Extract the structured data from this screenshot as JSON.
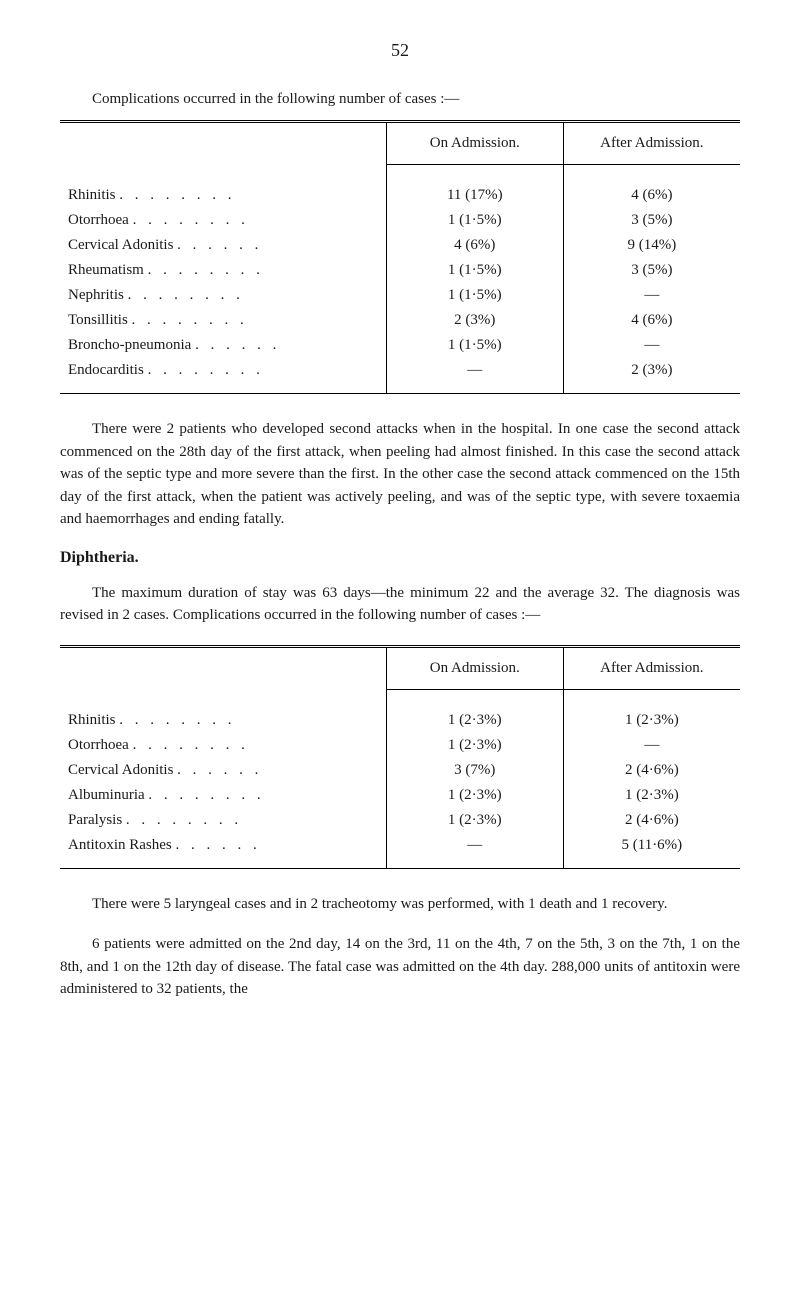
{
  "page_number": "52",
  "intro1": "Complications occurred in the following number of cases :—",
  "table1": {
    "header_col2": "On Admission.",
    "header_col3": "After Admission.",
    "rows": [
      {
        "condition": "Rhinitis",
        "dots": ". .   . .   . .   . .",
        "admission": "11 (17%)",
        "after": "4 (6%)"
      },
      {
        "condition": "Otorrhoea",
        "dots": ". .   . .   . .   . .",
        "admission": "1 (1·5%)",
        "after": "3 (5%)"
      },
      {
        "condition": "Cervical Adonitis",
        "dots": ". .   . .   . .",
        "admission": "4 (6%)",
        "after": "9 (14%)"
      },
      {
        "condition": "Rheumatism",
        "dots": ". .   . .   . .   . .",
        "admission": "1 (1·5%)",
        "after": "3 (5%)"
      },
      {
        "condition": "Nephritis",
        "dots": ". .   . .   . .   . .",
        "admission": "1 (1·5%)",
        "after": "—"
      },
      {
        "condition": "Tonsillitis",
        "dots": ". .   . .   . .   . .",
        "admission": "2 (3%)",
        "after": "4 (6%)"
      },
      {
        "condition": "Broncho-pneumonia",
        "dots": ". .   . .   . .",
        "admission": "1 (1·5%)",
        "after": "—"
      },
      {
        "condition": "Endocarditis",
        "dots": ". .   . .   . .   . .",
        "admission": "—",
        "after": "2 (3%)"
      }
    ]
  },
  "para1": "There were 2 patients who developed second attacks when in the hospital. In one case the second attack commenced on the 28th day of the first attack, when peeling had almost finished. In this case the second attack was of the septic type and more severe than the first. In the other case the second attack commenced on the 15th day of the first attack, when the patient was actively peeling, and was of the septic type, with severe toxaemia and haemorrhages and ending fatally.",
  "heading2": "Diphtheria.",
  "para2": "The maximum duration of stay was 63 days—the minimum 22 and the average 32. The diagnosis was revised in 2 cases. Com­plications occurred in the following number of cases :—",
  "table2": {
    "header_col2": "On Admission.",
    "header_col3": "After Admission.",
    "rows": [
      {
        "condition": "Rhinitis",
        "dots": ". .   . .   . .   . .",
        "admission": "1 (2·3%)",
        "after": "1 (2·3%)"
      },
      {
        "condition": "Otorrhoea",
        "dots": ". .   . .   . .   . .",
        "admission": "1 (2·3%)",
        "after": "—"
      },
      {
        "condition": "Cervical Adonitis",
        "dots": ". .   . .   . .",
        "admission": "3 (7%)",
        "after": "2 (4·6%)"
      },
      {
        "condition": "Albuminuria",
        "dots": ". .   . .   . .   . .",
        "admission": "1 (2·3%)",
        "after": "1 (2·3%)"
      },
      {
        "condition": "Paralysis",
        "dots": ". .   . .   . .   . .",
        "admission": "1 (2·3%)",
        "after": "2 (4·6%)"
      },
      {
        "condition": "Antitoxin Rashes",
        "dots": ". .   . .   . .",
        "admission": "—",
        "after": "5 (11·6%)"
      }
    ]
  },
  "para3": "There were 5 laryngeal cases and in 2 tracheotomy was performed, with 1 death and 1 recovery.",
  "para4": "6 patients were admitted on the 2nd day, 14 on the 3rd, 11 on the 4th, 7 on the 5th, 3 on the 7th, 1 on the 8th, and 1 on the 12th day of disease. The fatal case was admitted on the 4th day. 288,000 units of antitoxin were administered to 32 patients, the"
}
